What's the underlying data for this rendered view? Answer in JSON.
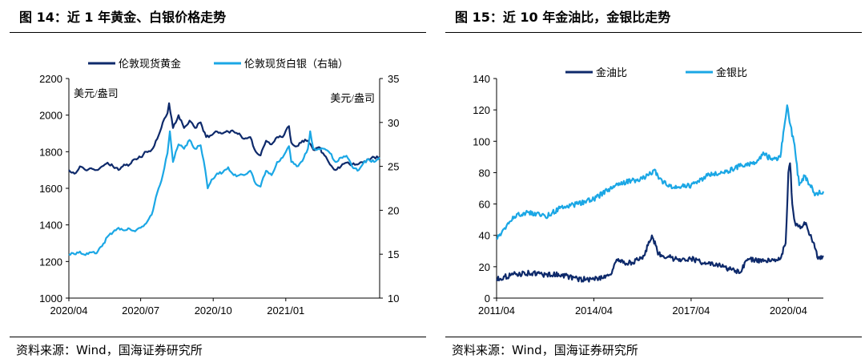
{
  "panels": [
    {
      "title": "图 14：近 1 年黄金、白银价格走势",
      "source": "资料来源：Wind，国海证券研究所"
    },
    {
      "title": "图 15：近 10 年金油比，金银比走势",
      "source": "资料来源：Wind，国海证券研究所"
    }
  ],
  "chart_data": [
    {
      "type": "line",
      "title": "",
      "x_start": "2020-04-01",
      "x_end": "2021-04-30",
      "x_ticks": [
        "2020/04",
        "2020/07",
        "2020/10",
        "2021/01"
      ],
      "x_tick_dates": [
        "2020-04-01",
        "2020-07-01",
        "2020-10-01",
        "2021-01-01"
      ],
      "y_left": {
        "range": [
          1000,
          2200
        ],
        "ticks": [
          1000,
          1200,
          1400,
          1600,
          1800,
          2000,
          2200
        ],
        "unit": "美元/盎司"
      },
      "y_right": {
        "range": [
          10,
          35
        ],
        "ticks": [
          10,
          15,
          20,
          25,
          30,
          35
        ],
        "unit": "美元/盎司"
      },
      "grid": false,
      "legend": "top-center",
      "series": [
        {
          "name": "伦敦现货黄金",
          "axis": "left",
          "color": "#0e2a6b",
          "points": [
            [
              "2020-04-01",
              1700
            ],
            [
              "2020-04-08",
              1680
            ],
            [
              "2020-04-15",
              1720
            ],
            [
              "2020-04-22",
              1700
            ],
            [
              "2020-04-29",
              1710
            ],
            [
              "2020-05-06",
              1700
            ],
            [
              "2020-05-13",
              1720
            ],
            [
              "2020-05-20",
              1740
            ],
            [
              "2020-05-27",
              1720
            ],
            [
              "2020-06-03",
              1700
            ],
            [
              "2020-06-10",
              1730
            ],
            [
              "2020-06-17",
              1730
            ],
            [
              "2020-06-24",
              1760
            ],
            [
              "2020-07-01",
              1770
            ],
            [
              "2020-07-08",
              1800
            ],
            [
              "2020-07-15",
              1810
            ],
            [
              "2020-07-22",
              1870
            ],
            [
              "2020-07-29",
              1960
            ],
            [
              "2020-08-04",
              2010
            ],
            [
              "2020-08-06",
              2065
            ],
            [
              "2020-08-11",
              1930
            ],
            [
              "2020-08-18",
              2000
            ],
            [
              "2020-08-25",
              1930
            ],
            [
              "2020-09-01",
              1970
            ],
            [
              "2020-09-08",
              1930
            ],
            [
              "2020-09-15",
              1960
            ],
            [
              "2020-09-22",
              1880
            ],
            [
              "2020-09-29",
              1890
            ],
            [
              "2020-10-06",
              1910
            ],
            [
              "2020-10-13",
              1900
            ],
            [
              "2020-10-20",
              1910
            ],
            [
              "2020-10-27",
              1910
            ],
            [
              "2020-11-03",
              1900
            ],
            [
              "2020-11-09",
              1870
            ],
            [
              "2020-11-17",
              1880
            ],
            [
              "2020-11-24",
              1800
            ],
            [
              "2020-11-30",
              1780
            ],
            [
              "2020-12-07",
              1860
            ],
            [
              "2020-12-14",
              1840
            ],
            [
              "2020-12-21",
              1880
            ],
            [
              "2020-12-28",
              1880
            ],
            [
              "2021-01-05",
              1940
            ],
            [
              "2021-01-08",
              1850
            ],
            [
              "2021-01-15",
              1830
            ],
            [
              "2021-01-22",
              1860
            ],
            [
              "2021-01-29",
              1860
            ],
            [
              "2021-02-05",
              1810
            ],
            [
              "2021-02-12",
              1825
            ],
            [
              "2021-02-19",
              1780
            ],
            [
              "2021-02-26",
              1730
            ],
            [
              "2021-03-05",
              1700
            ],
            [
              "2021-03-12",
              1720
            ],
            [
              "2021-03-19",
              1740
            ],
            [
              "2021-03-26",
              1730
            ],
            [
              "2021-04-02",
              1730
            ],
            [
              "2021-04-09",
              1740
            ],
            [
              "2021-04-16",
              1760
            ],
            [
              "2021-04-23",
              1770
            ],
            [
              "2021-04-30",
              1770
            ]
          ]
        },
        {
          "name": "伦敦现货白银（右轴）",
          "axis": "right",
          "color": "#1ba7e5",
          "points": [
            [
              "2020-04-01",
              15.0
            ],
            [
              "2020-04-08",
              15.0
            ],
            [
              "2020-04-15",
              15.3
            ],
            [
              "2020-04-22",
              14.9
            ],
            [
              "2020-04-29",
              15.2
            ],
            [
              "2020-05-06",
              15.1
            ],
            [
              "2020-05-13",
              15.9
            ],
            [
              "2020-05-20",
              17.0
            ],
            [
              "2020-05-27",
              17.5
            ],
            [
              "2020-06-03",
              18.0
            ],
            [
              "2020-06-10",
              17.7
            ],
            [
              "2020-06-17",
              17.9
            ],
            [
              "2020-06-24",
              17.6
            ],
            [
              "2020-07-01",
              18.0
            ],
            [
              "2020-07-08",
              18.5
            ],
            [
              "2020-07-15",
              19.5
            ],
            [
              "2020-07-22",
              22.0
            ],
            [
              "2020-07-29",
              24.0
            ],
            [
              "2020-08-04",
              26.5
            ],
            [
              "2020-08-07",
              29.0
            ],
            [
              "2020-08-11",
              25.5
            ],
            [
              "2020-08-18",
              27.5
            ],
            [
              "2020-08-25",
              27.0
            ],
            [
              "2020-09-01",
              28.0
            ],
            [
              "2020-09-08",
              27.0
            ],
            [
              "2020-09-15",
              27.4
            ],
            [
              "2020-09-21",
              24.5
            ],
            [
              "2020-09-24",
              22.5
            ],
            [
              "2020-09-29",
              23.5
            ],
            [
              "2020-10-06",
              24.2
            ],
            [
              "2020-10-13",
              24.3
            ],
            [
              "2020-10-20",
              24.9
            ],
            [
              "2020-10-27",
              24.0
            ],
            [
              "2020-11-03",
              24.0
            ],
            [
              "2020-11-09",
              24.0
            ],
            [
              "2020-11-17",
              24.5
            ],
            [
              "2020-11-24",
              23.0
            ],
            [
              "2020-11-30",
              22.7
            ],
            [
              "2020-12-07",
              24.5
            ],
            [
              "2020-12-14",
              24.0
            ],
            [
              "2020-12-21",
              25.5
            ],
            [
              "2020-12-28",
              26.0
            ],
            [
              "2021-01-05",
              27.3
            ],
            [
              "2021-01-08",
              25.5
            ],
            [
              "2021-01-15",
              25.0
            ],
            [
              "2021-01-22",
              25.6
            ],
            [
              "2021-01-29",
              27.0
            ],
            [
              "2021-02-01",
              29.0
            ],
            [
              "2021-02-05",
              27.0
            ],
            [
              "2021-02-12",
              27.0
            ],
            [
              "2021-02-19",
              27.0
            ],
            [
              "2021-02-26",
              26.5
            ],
            [
              "2021-03-05",
              25.5
            ],
            [
              "2021-03-12",
              26.0
            ],
            [
              "2021-03-19",
              26.2
            ],
            [
              "2021-03-26",
              25.0
            ],
            [
              "2021-04-02",
              24.5
            ],
            [
              "2021-04-09",
              25.3
            ],
            [
              "2021-04-16",
              25.8
            ],
            [
              "2021-04-23",
              25.5
            ],
            [
              "2021-04-30",
              26.0
            ]
          ]
        }
      ]
    },
    {
      "type": "line",
      "title": "",
      "x_start": "2011-04-01",
      "x_end": "2021-04-30",
      "x_ticks": [
        "2011/04",
        "2014/04",
        "2017/04",
        "2020/04"
      ],
      "x_tick_dates": [
        "2011-04-01",
        "2014-04-01",
        "2017-04-01",
        "2020-04-01"
      ],
      "y_left": {
        "range": [
          0,
          140
        ],
        "ticks": [
          0,
          20,
          40,
          60,
          80,
          100,
          120,
          140
        ]
      },
      "grid": false,
      "legend": "top-center",
      "series": [
        {
          "name": "金油比",
          "color": "#0e2a6b",
          "points": [
            [
              "2011-04-01",
              12
            ],
            [
              "2011-10-01",
              15
            ],
            [
              "2012-04-01",
              16
            ],
            [
              "2012-10-01",
              15
            ],
            [
              "2013-04-01",
              15
            ],
            [
              "2013-10-01",
              12
            ],
            [
              "2014-04-01",
              12
            ],
            [
              "2014-10-01",
              15
            ],
            [
              "2015-01-01",
              25
            ],
            [
              "2015-04-01",
              22
            ],
            [
              "2015-10-01",
              25
            ],
            [
              "2016-01-15",
              40
            ],
            [
              "2016-04-01",
              28
            ],
            [
              "2016-10-01",
              25
            ],
            [
              "2017-04-01",
              25
            ],
            [
              "2017-10-01",
              22
            ],
            [
              "2018-04-01",
              20
            ],
            [
              "2018-10-01",
              16
            ],
            [
              "2019-01-01",
              25
            ],
            [
              "2019-06-01",
              23
            ],
            [
              "2019-10-01",
              25
            ],
            [
              "2020-01-01",
              25
            ],
            [
              "2020-03-01",
              35
            ],
            [
              "2020-04-01",
              80
            ],
            [
              "2020-04-20",
              86
            ],
            [
              "2020-05-15",
              60
            ],
            [
              "2020-06-15",
              48
            ],
            [
              "2020-09-01",
              45
            ],
            [
              "2020-10-15",
              48
            ],
            [
              "2020-12-01",
              40
            ],
            [
              "2021-01-15",
              35
            ],
            [
              "2021-03-01",
              25
            ],
            [
              "2021-04-30",
              27
            ]
          ]
        },
        {
          "name": "金银比",
          "color": "#1ba7e5",
          "points": [
            [
              "2011-04-01",
              38
            ],
            [
              "2011-10-01",
              52
            ],
            [
              "2012-04-01",
              55
            ],
            [
              "2012-10-01",
              52
            ],
            [
              "2013-04-01",
              58
            ],
            [
              "2013-10-01",
              60
            ],
            [
              "2014-04-01",
              63
            ],
            [
              "2014-10-01",
              70
            ],
            [
              "2015-04-01",
              74
            ],
            [
              "2015-10-01",
              76
            ],
            [
              "2016-02-15",
              82
            ],
            [
              "2016-04-01",
              76
            ],
            [
              "2016-10-01",
              70
            ],
            [
              "2017-04-01",
              72
            ],
            [
              "2017-10-01",
              78
            ],
            [
              "2018-04-01",
              80
            ],
            [
              "2018-10-01",
              84
            ],
            [
              "2019-04-01",
              86
            ],
            [
              "2019-07-01",
              92
            ],
            [
              "2019-10-01",
              88
            ],
            [
              "2020-01-01",
              90
            ],
            [
              "2020-03-18",
              123
            ],
            [
              "2020-04-15",
              112
            ],
            [
              "2020-06-01",
              100
            ],
            [
              "2020-08-01",
              72
            ],
            [
              "2020-10-01",
              78
            ],
            [
              "2020-12-01",
              72
            ],
            [
              "2021-02-01",
              66
            ],
            [
              "2021-04-30",
              68
            ]
          ]
        }
      ]
    }
  ]
}
